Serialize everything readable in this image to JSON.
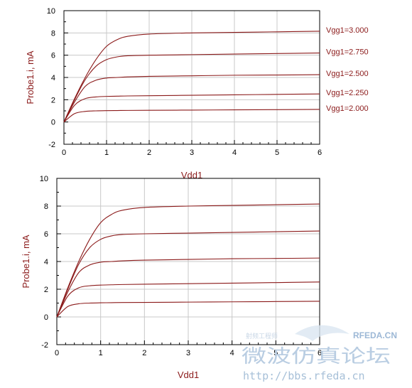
{
  "chart_data": [
    {
      "type": "line",
      "title": "",
      "xlabel": "Vdd1",
      "ylabel": "Probe1.i, mA",
      "xlim": [
        0,
        6
      ],
      "ylim": [
        -2,
        10
      ],
      "xticks": [
        0,
        1,
        2,
        3,
        4,
        5,
        6
      ],
      "yticks": [
        -2,
        0,
        2,
        4,
        6,
        8,
        10
      ],
      "grid": true,
      "series": [
        {
          "name": "Vgg1=3.000",
          "x": [
            0,
            0.25,
            0.5,
            0.75,
            1.0,
            1.25,
            1.5,
            2.0,
            3.0,
            4.0,
            5.0,
            6.0
          ],
          "y": [
            0,
            2.1,
            4.0,
            5.6,
            6.8,
            7.4,
            7.7,
            7.9,
            8.0,
            8.05,
            8.1,
            8.15
          ]
        },
        {
          "name": "Vgg1=2.750",
          "x": [
            0,
            0.25,
            0.5,
            0.75,
            1.0,
            1.25,
            1.5,
            2.0,
            3.0,
            4.0,
            5.0,
            6.0
          ],
          "y": [
            0,
            2.0,
            3.8,
            5.0,
            5.6,
            5.85,
            5.95,
            6.0,
            6.05,
            6.1,
            6.15,
            6.2
          ]
        },
        {
          "name": "Vgg1=2.500",
          "x": [
            0,
            0.25,
            0.5,
            0.75,
            1.0,
            1.25,
            1.5,
            2.0,
            3.0,
            4.0,
            5.0,
            6.0
          ],
          "y": [
            0,
            1.8,
            3.2,
            3.75,
            3.95,
            4.0,
            4.05,
            4.1,
            4.15,
            4.2,
            4.22,
            4.25
          ]
        },
        {
          "name": "Vgg1=2.250",
          "x": [
            0,
            0.25,
            0.5,
            0.75,
            1.0,
            1.25,
            1.5,
            2.0,
            3.0,
            4.0,
            5.0,
            6.0
          ],
          "y": [
            0,
            1.5,
            2.1,
            2.25,
            2.3,
            2.32,
            2.34,
            2.36,
            2.4,
            2.44,
            2.48,
            2.52
          ]
        },
        {
          "name": "Vgg1=2.000",
          "x": [
            0,
            0.25,
            0.5,
            0.75,
            1.0,
            1.25,
            1.5,
            2.0,
            3.0,
            4.0,
            5.0,
            6.0
          ],
          "y": [
            0,
            0.75,
            0.95,
            1.0,
            1.02,
            1.03,
            1.04,
            1.05,
            1.07,
            1.09,
            1.11,
            1.13
          ]
        }
      ]
    },
    {
      "type": "line",
      "title": "",
      "xlabel": "Vdd1",
      "ylabel": "Probe1.i, mA",
      "xlim": [
        0,
        6
      ],
      "ylim": [
        -2,
        10
      ],
      "xticks": [
        0,
        1,
        2,
        3,
        4,
        5,
        6
      ],
      "yticks": [
        -2,
        0,
        2,
        4,
        6,
        8,
        10
      ],
      "grid": true,
      "series": [
        {
          "x": [
            0,
            0.25,
            0.5,
            0.75,
            1.0,
            1.25,
            1.5,
            2.0,
            3.0,
            4.0,
            5.0,
            6.0
          ],
          "y": [
            0,
            2.1,
            4.0,
            5.6,
            6.8,
            7.4,
            7.7,
            7.9,
            8.0,
            8.05,
            8.1,
            8.15
          ]
        },
        {
          "x": [
            0,
            0.25,
            0.5,
            0.75,
            1.0,
            1.25,
            1.5,
            2.0,
            3.0,
            4.0,
            5.0,
            6.0
          ],
          "y": [
            0,
            2.0,
            3.8,
            5.0,
            5.6,
            5.85,
            5.95,
            6.0,
            6.05,
            6.1,
            6.15,
            6.2
          ]
        },
        {
          "x": [
            0,
            0.25,
            0.5,
            0.75,
            1.0,
            1.25,
            1.5,
            2.0,
            3.0,
            4.0,
            5.0,
            6.0
          ],
          "y": [
            0,
            1.8,
            3.2,
            3.75,
            3.95,
            4.0,
            4.05,
            4.1,
            4.15,
            4.2,
            4.22,
            4.25
          ]
        },
        {
          "x": [
            0,
            0.25,
            0.5,
            0.75,
            1.0,
            1.25,
            1.5,
            2.0,
            3.0,
            4.0,
            5.0,
            6.0
          ],
          "y": [
            0,
            1.5,
            2.1,
            2.25,
            2.3,
            2.32,
            2.34,
            2.36,
            2.4,
            2.44,
            2.48,
            2.52
          ]
        },
        {
          "x": [
            0,
            0.25,
            0.5,
            0.75,
            1.0,
            1.25,
            1.5,
            2.0,
            3.0,
            4.0,
            5.0,
            6.0
          ],
          "y": [
            0,
            0.75,
            0.95,
            1.0,
            1.02,
            1.03,
            1.04,
            1.05,
            1.07,
            1.09,
            1.11,
            1.13
          ]
        }
      ]
    }
  ],
  "watermark": {
    "logo": "RFEDA.CN",
    "url": "http://bbs.rfeda.cn",
    "chinese": "微波仿真论坛",
    "small_text": "射频工程师"
  },
  "colors": {
    "curve": "#8b1a1a",
    "grid": "#c8c8c8",
    "label": "#8b1a1a"
  }
}
